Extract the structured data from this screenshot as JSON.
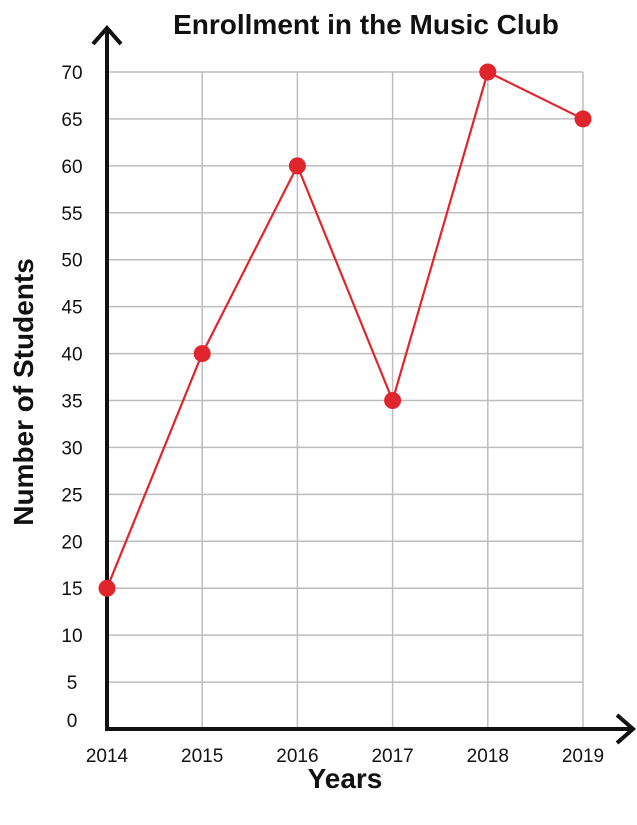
{
  "chart_data": {
    "type": "line",
    "title": "Enrollment in the Music Club",
    "xlabel": "Years",
    "ylabel": "Number of Students",
    "categories": [
      "2014",
      "2015",
      "2016",
      "2017",
      "2018",
      "2019"
    ],
    "y_ticks": [
      "0",
      "5",
      "10",
      "15",
      "20",
      "25",
      "30",
      "35",
      "40",
      "45",
      "50",
      "55",
      "60",
      "65",
      "70"
    ],
    "ylim": [
      0,
      70
    ],
    "grid": true,
    "series": [
      {
        "values": [
          15,
          40,
          60,
          35,
          70,
          65
        ]
      }
    ],
    "colors": {
      "line": "#e0252c",
      "marker": "#e0252c",
      "grid": "#bdbdbd",
      "axis": "#111111"
    }
  }
}
